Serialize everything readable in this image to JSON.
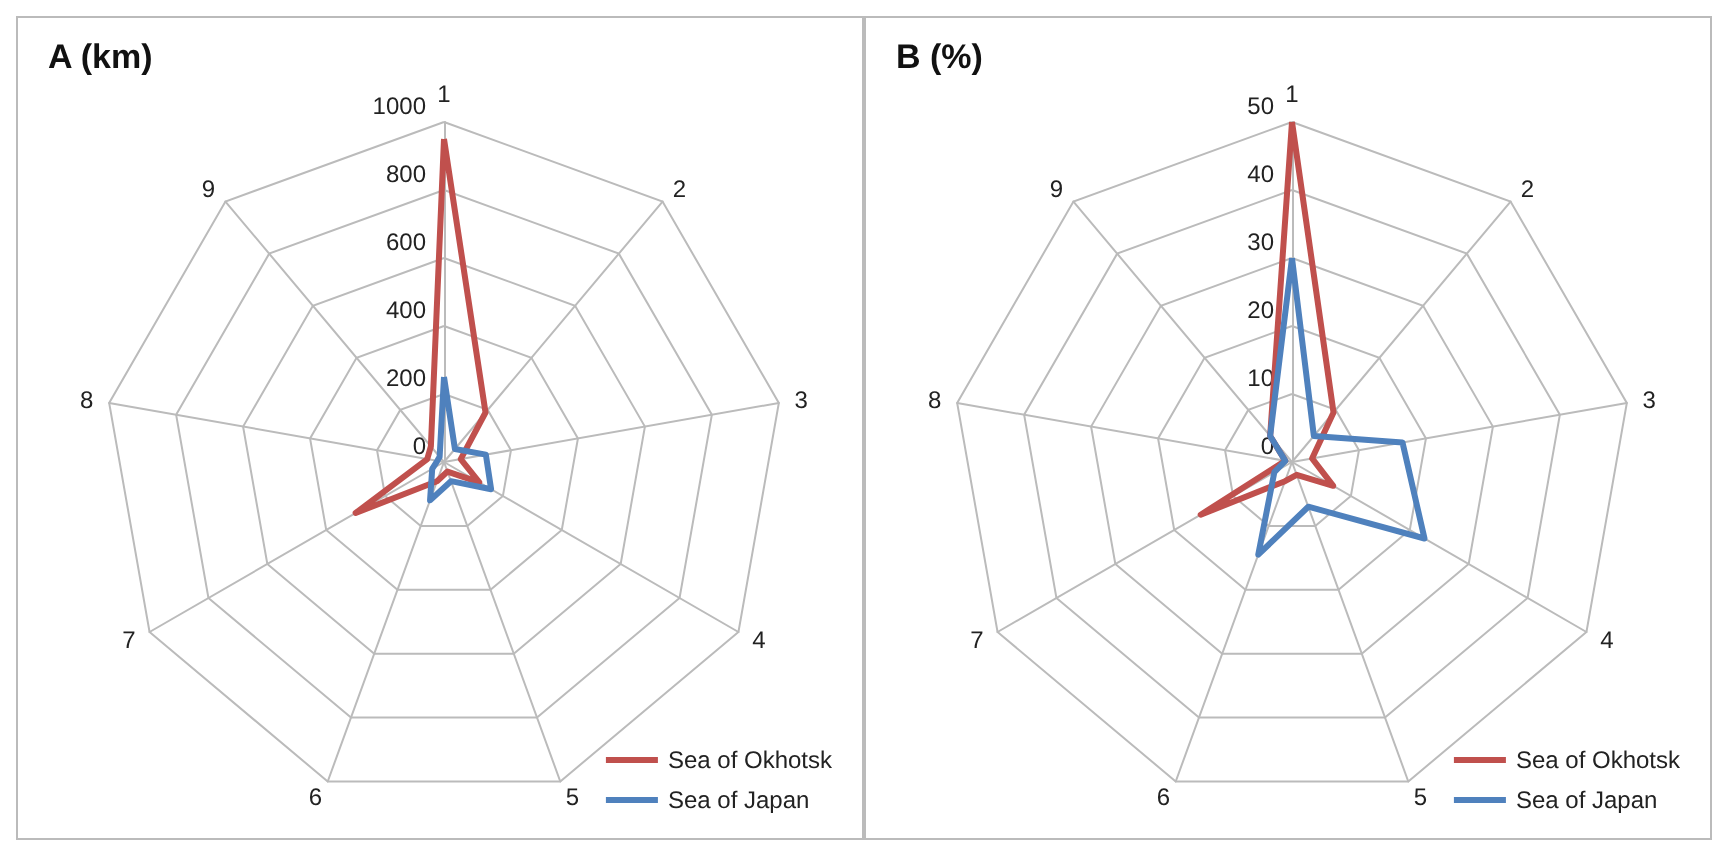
{
  "chart_data": [
    {
      "type": "radar",
      "title": "A (km)",
      "categories": [
        "1",
        "2",
        "3",
        "4",
        "5",
        "6",
        "7",
        "8",
        "9"
      ],
      "ylim": [
        0,
        1000
      ],
      "yticks": [
        0,
        200,
        400,
        600,
        800,
        1000
      ],
      "grid": true,
      "legend": "bottom right",
      "marker": "none",
      "series": [
        {
          "name": "Sea of Okhotsk",
          "color": "#c0504d",
          "values": [
            950,
            190,
            50,
            120,
            30,
            60,
            300,
            50,
            60
          ]
        },
        {
          "name": "Sea of Japan",
          "color": "#4f81bd",
          "values": [
            250,
            50,
            125,
            160,
            60,
            120,
            40,
            20,
            20
          ]
        }
      ]
    },
    {
      "type": "radar",
      "title": "B (%)",
      "categories": [
        "1",
        "2",
        "3",
        "4",
        "5",
        "6",
        "7",
        "8",
        "9"
      ],
      "ylim": [
        0,
        50
      ],
      "yticks": [
        0,
        10,
        20,
        30,
        40,
        50
      ],
      "grid": true,
      "legend": "bottom right",
      "marker": "none",
      "series": [
        {
          "name": "Sea of Okhotsk",
          "color": "#c0504d",
          "values": [
            50,
            9.5,
            3,
            7,
            2,
            3,
            15.5,
            1,
            5
          ]
        },
        {
          "name": "Sea of Japan",
          "color": "#4f81bd",
          "values": [
            30,
            5,
            16.5,
            22.5,
            7,
            14.5,
            3,
            1,
            5
          ]
        }
      ]
    }
  ]
}
